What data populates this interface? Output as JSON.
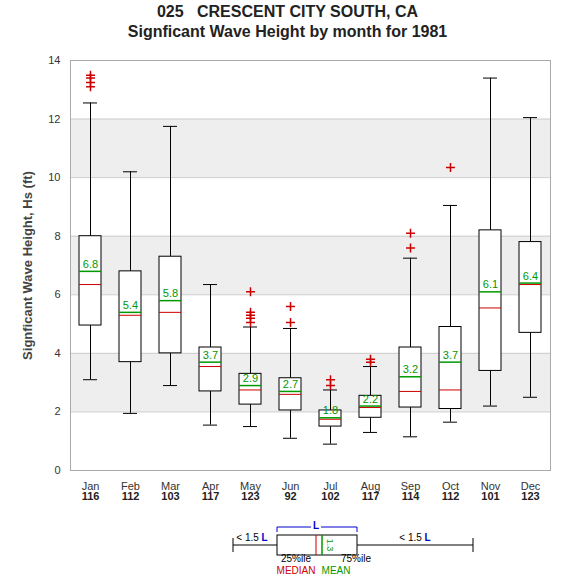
{
  "chart_data": {
    "type": "box",
    "title": "025   CRESCENT CITY SOUTH, CA",
    "subtitle": "Signficant Wave Height by month for 1981",
    "y_label": "Signficant Wave Height, Hs (ft)",
    "categories": [
      "Jan",
      "Feb",
      "Mar",
      "Apr",
      "May",
      "Jun",
      "Jul",
      "Aug",
      "Sep",
      "Oct",
      "Nov",
      "Dec"
    ],
    "counts": [
      116,
      112,
      103,
      117,
      123,
      92,
      102,
      117,
      114,
      112,
      101,
      123
    ],
    "boxes": [
      {
        "low": 3.1,
        "q1": 4.95,
        "median": 6.35,
        "q3": 8.0,
        "high": 12.55,
        "mean": 6.8,
        "outliers": [
          13.1,
          13.25,
          13.4,
          13.5
        ]
      },
      {
        "low": 1.95,
        "q1": 3.7,
        "median": 5.3,
        "q3": 6.8,
        "high": 10.2,
        "mean": 5.4,
        "outliers": []
      },
      {
        "low": 2.9,
        "q1": 4.0,
        "median": 5.4,
        "q3": 7.3,
        "high": 11.75,
        "mean": 5.8,
        "outliers": []
      },
      {
        "low": 1.55,
        "q1": 2.7,
        "median": 3.55,
        "q3": 4.2,
        "high": 6.35,
        "mean": 3.7,
        "outliers": []
      },
      {
        "low": 1.5,
        "q1": 2.25,
        "median": 2.75,
        "q3": 3.3,
        "high": 4.9,
        "mean": 2.9,
        "outliers": [
          5.05,
          5.2,
          5.3,
          5.4,
          6.1
        ]
      },
      {
        "low": 1.1,
        "q1": 2.05,
        "median": 2.6,
        "q3": 3.15,
        "high": 4.85,
        "mean": 2.7,
        "outliers": [
          5.05,
          5.6
        ]
      },
      {
        "low": 0.9,
        "q1": 1.5,
        "median": 1.75,
        "q3": 2.05,
        "high": 2.75,
        "mean": 1.8,
        "outliers": [
          2.9,
          3.1
        ]
      },
      {
        "low": 1.3,
        "q1": 1.8,
        "median": 2.15,
        "q3": 2.55,
        "high": 3.55,
        "mean": 2.2,
        "outliers": [
          3.7,
          3.8
        ]
      },
      {
        "low": 1.15,
        "q1": 2.15,
        "median": 2.7,
        "q3": 4.2,
        "high": 7.25,
        "mean": 3.2,
        "outliers": [
          7.6,
          8.1
        ]
      },
      {
        "low": 1.65,
        "q1": 2.1,
        "median": 2.75,
        "q3": 4.9,
        "high": 9.05,
        "mean": 3.7,
        "outliers": [
          10.35
        ]
      },
      {
        "low": 2.2,
        "q1": 3.4,
        "median": 5.55,
        "q3": 8.2,
        "high": 13.4,
        "mean": 6.1,
        "outliers": []
      },
      {
        "low": 2.5,
        "q1": 4.7,
        "median": 6.35,
        "q3": 7.8,
        "high": 12.05,
        "mean": 6.4,
        "outliers": []
      }
    ],
    "ylim": [
      0,
      14
    ],
    "yticks": [
      0,
      2,
      4,
      6,
      8,
      10,
      12,
      14
    ],
    "grid": true,
    "data_labels": true,
    "key": {
      "whisker_label": "< 1.5 L",
      "box_label": "L",
      "q1_label": "25%ile",
      "q3_label": "75%ile",
      "median_label": "MEDIAN",
      "mean_label": "MEAN",
      "mean_value_label": "1.3"
    }
  }
}
